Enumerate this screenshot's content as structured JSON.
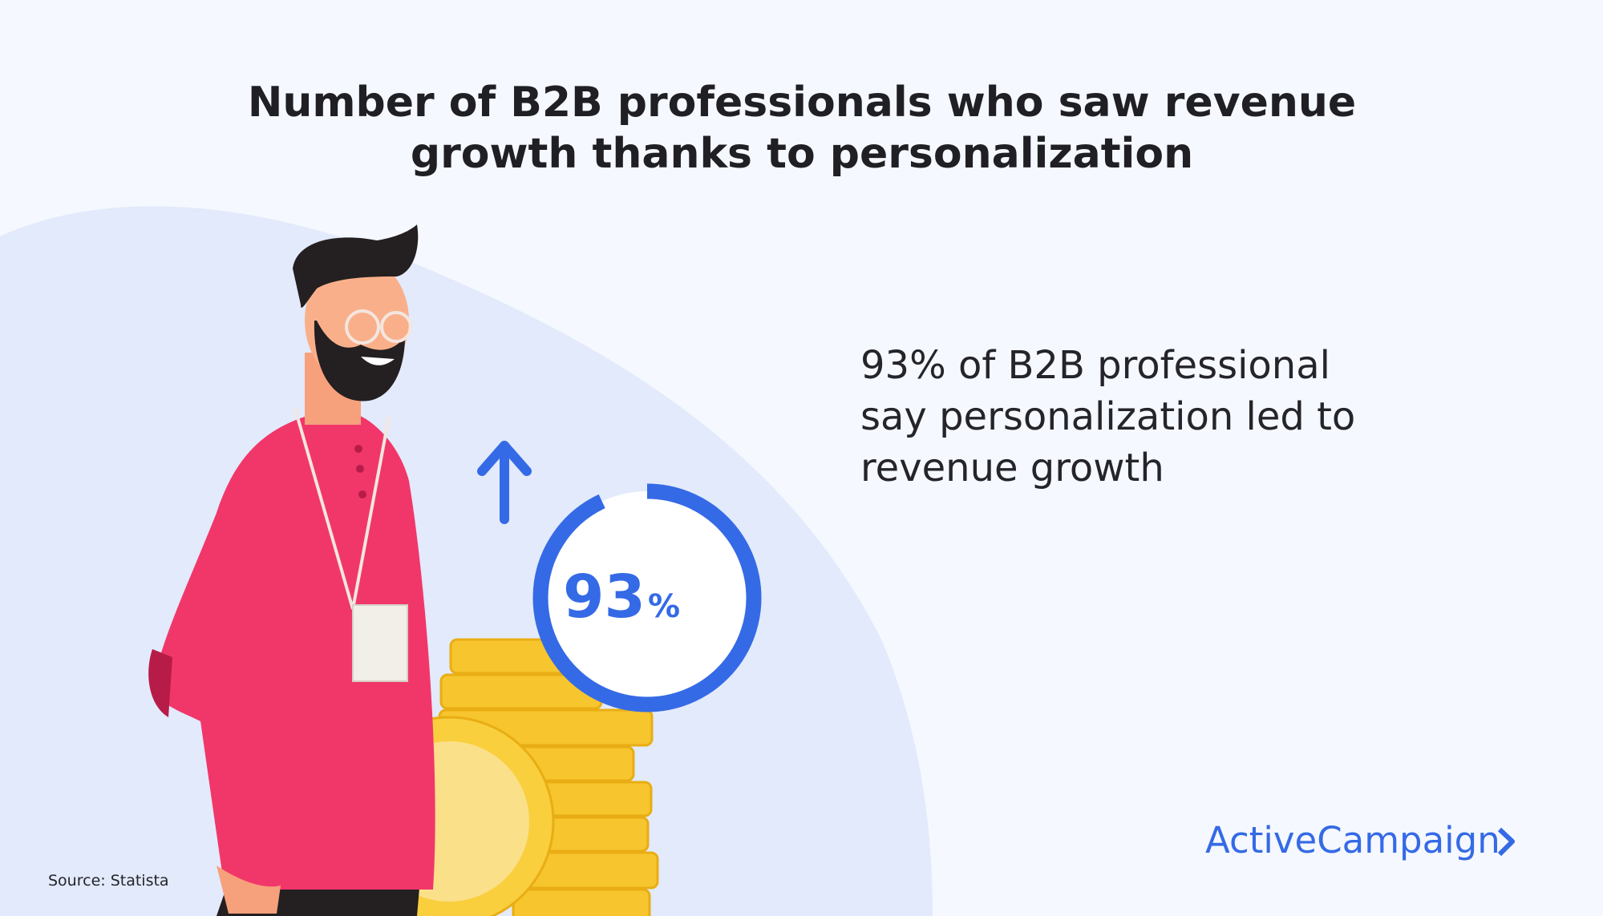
{
  "title": [
    "Number of B2B professionals who saw revenue",
    "growth thanks to personalization"
  ],
  "gauge": {
    "value": 93,
    "unit": "%"
  },
  "statement": [
    "93% of B2B professional",
    "say personalization led to",
    "revenue growth"
  ],
  "source": "Source: Statista",
  "brand": "ActiveCampaign"
}
